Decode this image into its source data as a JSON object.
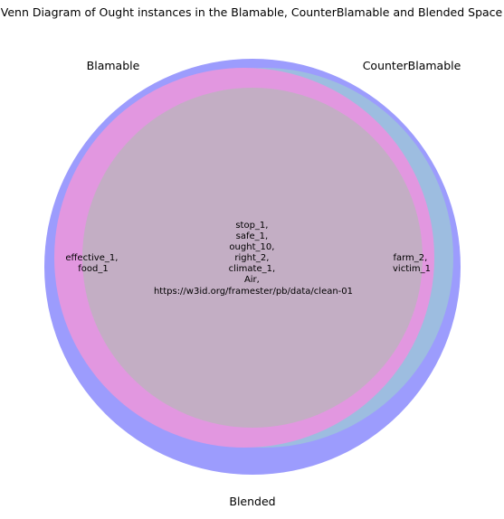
{
  "title": "Venn Diagram of Ought instances in the Blamable, CounterBlamable and Blended Space",
  "sets": {
    "blamable": {
      "label": "Blamable",
      "color": "#e297e0"
    },
    "counterblamable": {
      "label": "CounterBlamable",
      "color": "#9dbde0"
    },
    "blended": {
      "label": "Blended",
      "color": "#9c9cfd"
    }
  },
  "overlap_color": "#c3aec4",
  "regions": {
    "blamable_blended": [
      "effective_1,",
      "food_1"
    ],
    "center": [
      "stop_1,",
      "safe_1,",
      "ought_10,",
      "right_2,",
      "climate_1,",
      "Air,",
      "https://w3id.org/framester/pb/data/clean-01"
    ],
    "counterblamable_blended": [
      "farm_2,",
      "victim_1"
    ]
  }
}
